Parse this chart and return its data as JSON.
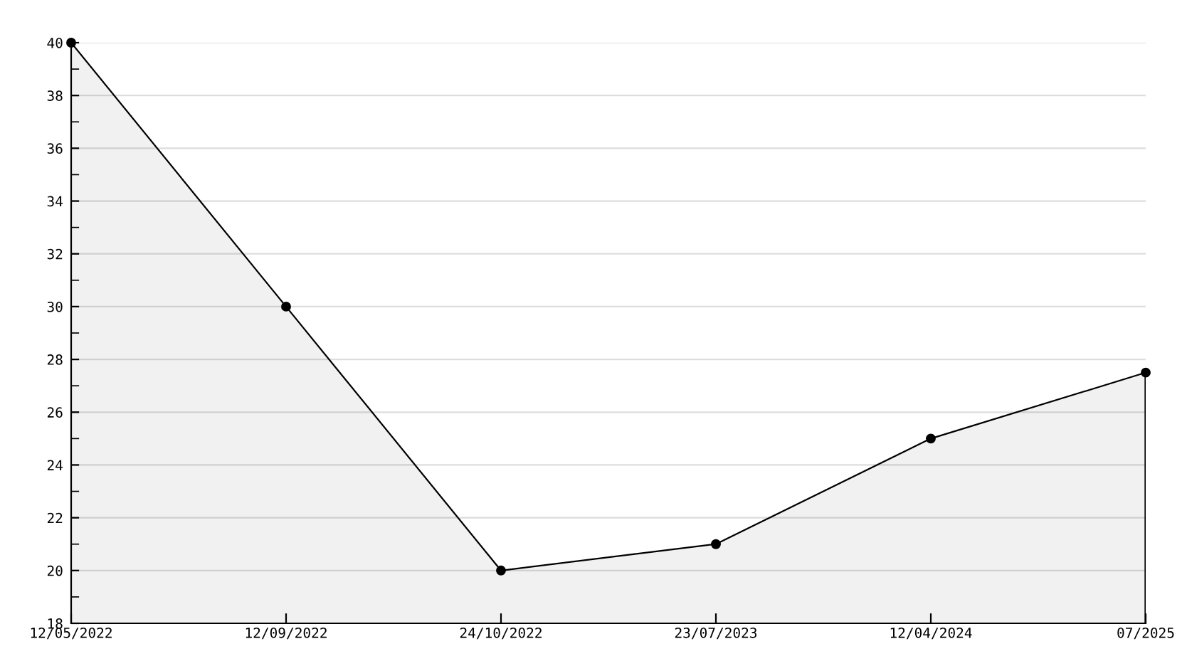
{
  "chart_data": {
    "type": "area",
    "categories": [
      "12/05/2022",
      "12/09/2022",
      "24/10/2022",
      "23/07/2023",
      "12/04/2024",
      "07/2025"
    ],
    "series": [
      {
        "color": "#000000",
        "values": [
          40,
          30,
          20,
          21,
          25,
          27.5
        ]
      }
    ],
    "ylim": [
      18,
      40
    ],
    "yticks": [
      18,
      20,
      22,
      24,
      26,
      28,
      30,
      32,
      34,
      36,
      38,
      40
    ],
    "grid": "y",
    "marker": "circle",
    "line_style": "solid",
    "legend": false
  }
}
